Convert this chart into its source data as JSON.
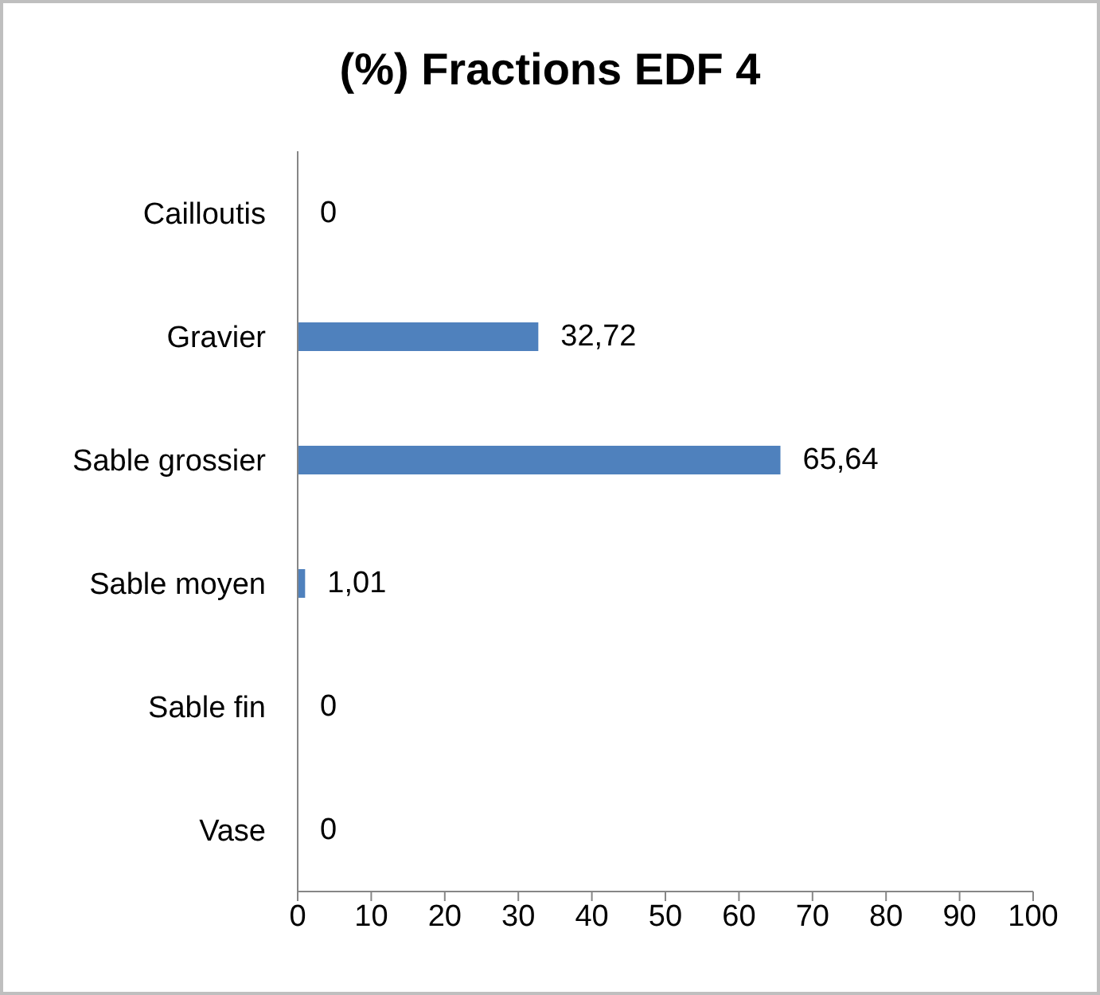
{
  "chart_data": {
    "type": "bar",
    "orientation": "horizontal",
    "title": "(%) Fractions EDF 4",
    "categories": [
      "Cailloutis",
      "Gravier",
      "Sable grossier",
      "Sable moyen",
      "Sable fin",
      "Vase"
    ],
    "values": [
      0,
      32.72,
      65.64,
      1.01,
      0,
      0
    ],
    "value_labels": [
      "0",
      "32,72",
      "65,64",
      "1,01",
      "0",
      "0"
    ],
    "color": "#4f81bd",
    "xlim": [
      0,
      100
    ],
    "xticks": [
      0,
      10,
      20,
      30,
      40,
      50,
      60,
      70,
      80,
      90,
      100
    ],
    "grid": false,
    "legend": false
  }
}
